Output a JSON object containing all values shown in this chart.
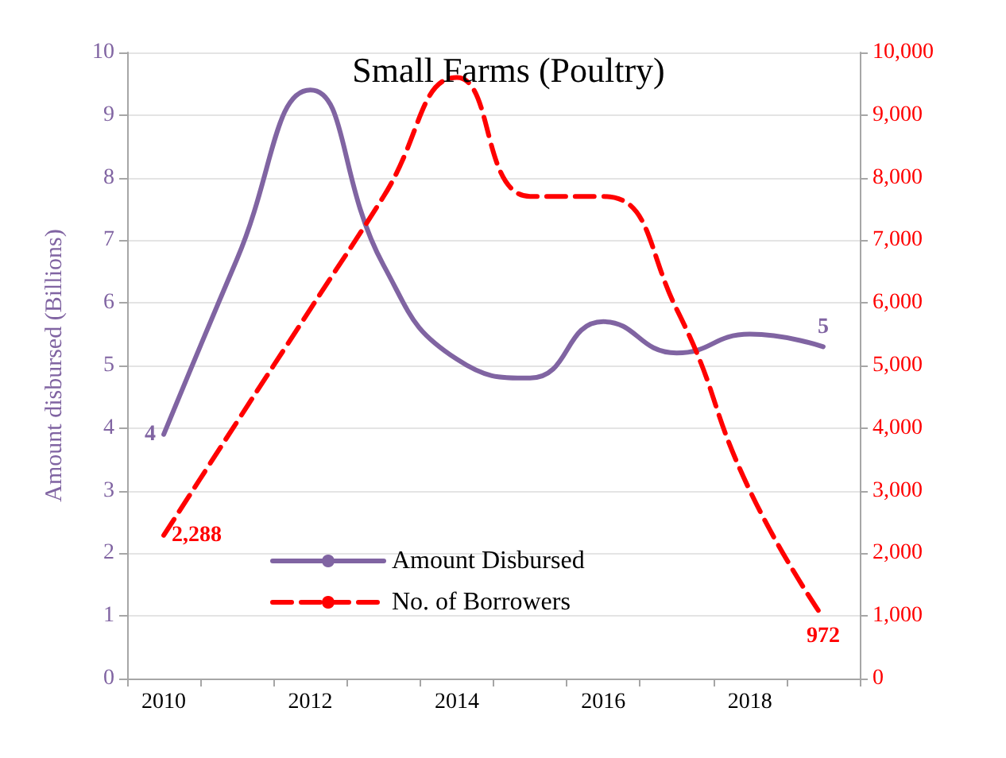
{
  "chart_data": {
    "type": "line",
    "title": "Small Farms (Poultry)",
    "ylabel": "Amount disbursed (Billions)",
    "categories": [
      "2010",
      null,
      "2012",
      null,
      "2014",
      null,
      "2016",
      null,
      "2018",
      null
    ],
    "series": [
      {
        "name": "Amount Disbursed",
        "color": "#8064a2",
        "line_style": "solid",
        "values": [
          3.9,
          6.7,
          9.4,
          6.6,
          5.1,
          4.8,
          5.7,
          5.2,
          5.5,
          5.3
        ],
        "value_labels": [
          "4",
          null,
          null,
          null,
          null,
          null,
          null,
          null,
          null,
          "5"
        ]
      },
      {
        "name": "No. of Borrowers",
        "color": "#ff0000",
        "line_style": "dashed",
        "axis": "y2",
        "values": [
          2288,
          4100,
          5900,
          7700,
          9600,
          7700,
          7700,
          5900,
          3000,
          972
        ],
        "value_labels": [
          "2,288",
          null,
          null,
          null,
          null,
          null,
          null,
          null,
          null,
          "972"
        ]
      }
    ],
    "ylim": [
      0,
      10
    ],
    "yticks": [
      0,
      1,
      2,
      3,
      4,
      5,
      6,
      7,
      8,
      9,
      10
    ],
    "y2lim": [
      0,
      10000
    ],
    "y2ticks": [
      0,
      {
        "value": 1000,
        "label": "1,000"
      },
      {
        "value": 2000,
        "label": "2,000"
      },
      {
        "value": 3000,
        "label": "3,000"
      },
      {
        "value": 4000,
        "label": "4,000"
      },
      {
        "value": 5000,
        "label": "5,000"
      },
      {
        "value": 6000,
        "label": "6,000"
      },
      {
        "value": 7000,
        "label": "7,000"
      },
      {
        "value": 8000,
        "label": "8,000"
      },
      {
        "value": 9000,
        "label": "9,000"
      },
      {
        "value": 10000,
        "label": "10,000"
      }
    ],
    "grid": "y",
    "legend": "bottom left",
    "marker": "none"
  }
}
